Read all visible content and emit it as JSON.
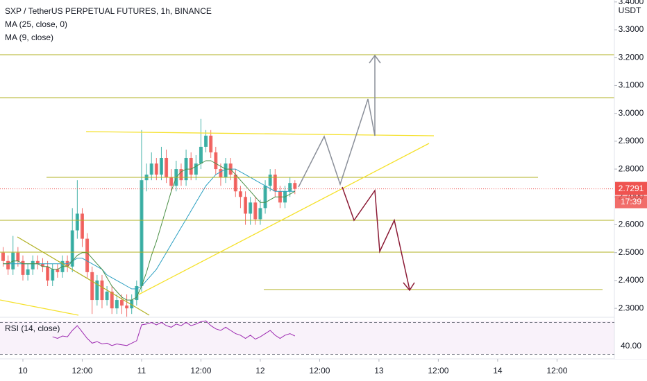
{
  "chart_data": {
    "type": "candlestick",
    "title": "SXP / TetherUS PERPETUAL FUTURES, 1h, BINANCE",
    "currency": "USDT",
    "up_color": "#26a69a",
    "down_color": "#ef5350",
    "open": [
      2.5,
      2.47,
      2.44,
      2.5,
      2.47,
      2.42,
      2.44,
      2.47,
      2.46,
      2.45,
      2.4,
      2.44,
      2.43,
      2.47,
      2.45,
      2.58,
      2.64,
      2.55,
      2.43,
      2.33,
      2.4,
      2.33,
      2.36,
      2.3,
      2.33,
      2.31,
      2.3,
      2.33,
      2.38,
      2.76,
      2.78,
      2.82,
      2.78,
      2.84,
      2.77,
      2.74,
      2.8,
      2.76,
      2.84,
      2.78,
      2.82,
      2.88,
      2.92,
      2.86,
      2.8,
      2.77,
      2.82,
      2.78,
      2.72,
      2.7,
      2.64,
      2.68,
      2.62,
      2.66,
      2.74,
      2.78,
      2.72,
      2.68,
      2.72,
      2.75
    ],
    "high": [
      2.52,
      2.49,
      2.56,
      2.52,
      2.49,
      2.46,
      2.49,
      2.49,
      2.48,
      2.47,
      2.46,
      2.46,
      2.49,
      2.49,
      2.66,
      2.76,
      2.66,
      2.57,
      2.45,
      2.42,
      2.42,
      2.38,
      2.38,
      2.35,
      2.35,
      2.35,
      2.35,
      2.4,
      2.94,
      2.82,
      2.86,
      2.84,
      2.88,
      2.87,
      2.8,
      2.83,
      2.82,
      2.87,
      2.86,
      2.85,
      2.98,
      2.94,
      2.94,
      2.88,
      2.82,
      2.84,
      2.84,
      2.8,
      2.74,
      2.72,
      2.7,
      2.7,
      2.69,
      2.76,
      2.8,
      2.8,
      2.74,
      2.74,
      2.77,
      2.76
    ],
    "low": [
      2.45,
      2.42,
      2.42,
      2.45,
      2.4,
      2.4,
      2.42,
      2.44,
      2.43,
      2.38,
      2.38,
      2.41,
      2.41,
      2.43,
      2.43,
      2.55,
      2.52,
      2.41,
      2.28,
      2.31,
      2.3,
      2.31,
      2.28,
      2.28,
      2.28,
      2.27,
      2.28,
      2.31,
      2.36,
      2.72,
      2.76,
      2.76,
      2.76,
      2.75,
      2.72,
      2.72,
      2.74,
      2.74,
      2.76,
      2.76,
      2.8,
      2.86,
      2.84,
      2.78,
      2.74,
      2.75,
      2.76,
      2.7,
      2.66,
      2.6,
      2.6,
      2.6,
      2.6,
      2.64,
      2.72,
      2.7,
      2.66,
      2.66,
      2.7,
      2.71
    ],
    "close": [
      2.47,
      2.44,
      2.5,
      2.47,
      2.42,
      2.44,
      2.47,
      2.46,
      2.45,
      2.4,
      2.44,
      2.43,
      2.47,
      2.45,
      2.58,
      2.64,
      2.55,
      2.43,
      2.33,
      2.4,
      2.33,
      2.36,
      2.3,
      2.33,
      2.31,
      2.3,
      2.33,
      2.38,
      2.76,
      2.78,
      2.82,
      2.78,
      2.84,
      2.77,
      2.74,
      2.8,
      2.76,
      2.84,
      2.78,
      2.82,
      2.88,
      2.92,
      2.86,
      2.8,
      2.77,
      2.82,
      2.78,
      2.72,
      2.7,
      2.64,
      2.68,
      2.62,
      2.66,
      2.74,
      2.78,
      2.72,
      2.68,
      2.72,
      2.75,
      2.7291
    ],
    "indicators": [
      {
        "name": "MA (25, close, 0)",
        "color": "#2a9fc1",
        "values": [
          2.46,
          2.46,
          2.46,
          2.46,
          2.46,
          2.46,
          2.46,
          2.46,
          2.46,
          2.46,
          2.46,
          2.46,
          2.46,
          2.46,
          2.47,
          2.48,
          2.48,
          2.47,
          2.46,
          2.45,
          2.44,
          2.42,
          2.41,
          2.4,
          2.39,
          2.38,
          2.37,
          2.37,
          2.38,
          2.4,
          2.42,
          2.44,
          2.47,
          2.5,
          2.53,
          2.56,
          2.59,
          2.62,
          2.65,
          2.68,
          2.71,
          2.74,
          2.76,
          2.78,
          2.79,
          2.8,
          2.8,
          2.8,
          2.79,
          2.78,
          2.77,
          2.76,
          2.75,
          2.74,
          2.73,
          2.72,
          2.72,
          2.72,
          2.72,
          2.72
        ]
      },
      {
        "name": "MA (9, close)",
        "color": "#4a8f46",
        "values": [
          2.46,
          2.46,
          2.47,
          2.47,
          2.46,
          2.46,
          2.46,
          2.46,
          2.45,
          2.45,
          2.44,
          2.44,
          2.45,
          2.45,
          2.47,
          2.49,
          2.5,
          2.5,
          2.48,
          2.46,
          2.44,
          2.41,
          2.38,
          2.36,
          2.34,
          2.33,
          2.33,
          2.34,
          2.38,
          2.43,
          2.49,
          2.54,
          2.6,
          2.66,
          2.72,
          2.77,
          2.79,
          2.8,
          2.8,
          2.81,
          2.82,
          2.83,
          2.83,
          2.82,
          2.81,
          2.8,
          2.8,
          2.78,
          2.76,
          2.74,
          2.72,
          2.7,
          2.68,
          2.68,
          2.69,
          2.7,
          2.7,
          2.7,
          2.71,
          2.72
        ]
      }
    ],
    "countdown": "17:39",
    "last_price_color": "#ef5350",
    "xlim": [
      -0.63,
      123.6
    ],
    "xticks": [
      {
        "value": 4,
        "label": "10"
      },
      {
        "value": 16,
        "label": "12:00"
      },
      {
        "value": 28,
        "label": "11"
      },
      {
        "value": 40,
        "label": "12:00"
      },
      {
        "value": 52,
        "label": "12"
      },
      {
        "value": 64,
        "label": "12:00"
      },
      {
        "value": 76,
        "label": "13"
      },
      {
        "value": 88,
        "label": "12:00"
      },
      {
        "value": 100,
        "label": "14"
      },
      {
        "value": 112,
        "label": "12:00"
      }
    ],
    "ylim": [
      2.268,
      3.407
    ],
    "yticks": [
      {
        "value": 2.3,
        "label": "2.3000"
      },
      {
        "value": 2.4,
        "label": "2.4000"
      },
      {
        "value": 2.5,
        "label": "2.5000"
      },
      {
        "value": 2.6,
        "label": "2.6000"
      },
      {
        "value": 2.7,
        "label": "2.7000"
      },
      {
        "value": 2.8,
        "label": "2.8000"
      },
      {
        "value": 2.9,
        "label": "2.9000"
      },
      {
        "value": 3.0,
        "label": "3.0000"
      },
      {
        "value": 3.1,
        "label": "3.1000"
      },
      {
        "value": 3.2,
        "label": "3.2000"
      },
      {
        "value": 3.3,
        "label": "3.3000"
      },
      {
        "value": 3.4,
        "label": "3.4000"
      }
    ],
    "rsi": {
      "type": "line",
      "name": "RSI (14, close)",
      "color": "#9c27b0",
      "values": [
        null,
        null,
        null,
        null,
        null,
        null,
        null,
        null,
        null,
        null,
        52,
        50,
        53,
        52,
        60,
        66,
        58,
        50,
        44,
        46,
        43,
        44,
        41,
        43,
        42,
        41,
        44,
        47,
        67,
        68,
        70,
        67,
        70,
        66,
        64,
        68,
        66,
        70,
        66,
        68,
        71,
        72,
        66,
        62,
        60,
        64,
        60,
        56,
        54,
        50,
        54,
        49,
        52,
        56,
        60,
        54,
        50,
        54,
        56,
        53
      ],
      "ylim": [
        24.3,
        74.8
      ],
      "yticks": [
        {
          "value": 40,
          "label": "40.00"
        }
      ],
      "levels": [
        30,
        70
      ]
    }
  }
}
